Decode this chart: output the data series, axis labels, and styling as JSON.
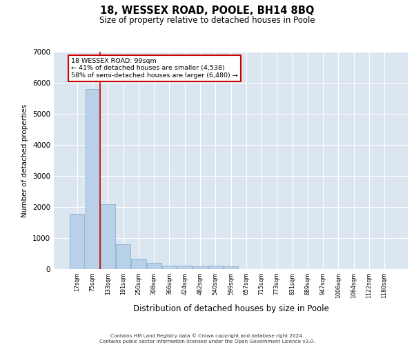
{
  "title": "18, WESSEX ROAD, POOLE, BH14 8BQ",
  "subtitle": "Size of property relative to detached houses in Poole",
  "xlabel": "Distribution of detached houses by size in Poole",
  "ylabel": "Number of detached properties",
  "bar_color": "#b8d0e8",
  "bar_edge_color": "#7aaac8",
  "background_color": "#dce6f0",
  "grid_color": "#ffffff",
  "bin_labels": [
    "17sqm",
    "75sqm",
    "133sqm",
    "191sqm",
    "250sqm",
    "308sqm",
    "366sqm",
    "424sqm",
    "482sqm",
    "540sqm",
    "599sqm",
    "657sqm",
    "715sqm",
    "773sqm",
    "831sqm",
    "889sqm",
    "947sqm",
    "1006sqm",
    "1064sqm",
    "1122sqm",
    "1180sqm"
  ],
  "bar_values": [
    1780,
    5800,
    2080,
    800,
    340,
    200,
    120,
    110,
    100,
    110,
    80,
    0,
    0,
    0,
    0,
    0,
    0,
    0,
    0,
    0,
    0
  ],
  "red_line_x": 1.5,
  "annotation_text": "18 WESSEX ROAD: 99sqm\n← 41% of detached houses are smaller (4,538)\n58% of semi-detached houses are larger (6,480) →",
  "ylim": [
    0,
    7000
  ],
  "yticks": [
    0,
    1000,
    2000,
    3000,
    4000,
    5000,
    6000,
    7000
  ],
  "footer_line1": "Contains HM Land Registry data © Crown copyright and database right 2024.",
  "footer_line2": "Contains public sector information licensed under the Open Government Licence v3.0."
}
